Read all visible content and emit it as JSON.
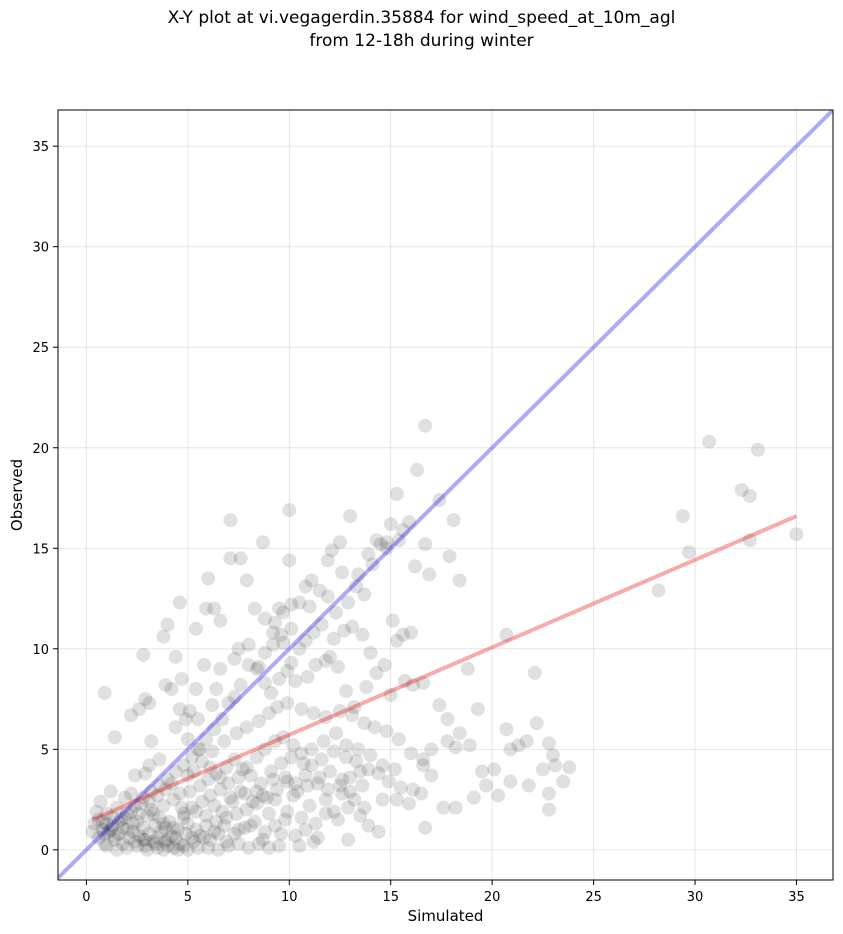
{
  "chart_data": {
    "type": "scatter",
    "title_line1": "X-Y plot at vi.vegagerdin.35884 for wind_speed_at_10m_agl",
    "title_line2": "from 12-18h during winter",
    "xlabel": "Simulated",
    "ylabel": "Observed",
    "xlim": [
      -1.4,
      36.8
    ],
    "ylim": [
      -1.5,
      36.8
    ],
    "xticks": [
      0,
      5,
      10,
      15,
      20,
      25,
      30,
      35
    ],
    "yticks": [
      0,
      5,
      10,
      15,
      20,
      25,
      30,
      35
    ],
    "grid": true,
    "colors": {
      "points": "#000000",
      "identity_line": "#0000ee",
      "fit_line": "#ee0000"
    },
    "identity_line": {
      "x": [
        -1.4,
        36.8
      ],
      "y": [
        -1.4,
        36.8
      ]
    },
    "fit_line": {
      "x": [
        0.3,
        35.0
      ],
      "y": [
        1.5,
        16.6
      ]
    },
    "points": [
      [
        0.9,
        7.8
      ],
      [
        1.4,
        5.6
      ],
      [
        2.2,
        6.7
      ],
      [
        2.6,
        7.0
      ],
      [
        2.9,
        7.5
      ],
      [
        3.8,
        10.6
      ],
      [
        4.0,
        11.2
      ],
      [
        4.6,
        12.3
      ],
      [
        5.4,
        11.0
      ],
      [
        5.9,
        12.0
      ],
      [
        6.0,
        13.5
      ],
      [
        6.3,
        12.0
      ],
      [
        6.6,
        11.4
      ],
      [
        7.1,
        14.5
      ],
      [
        7.1,
        16.4
      ],
      [
        7.6,
        14.5
      ],
      [
        7.9,
        13.4
      ],
      [
        8.7,
        15.3
      ],
      [
        10.0,
        16.9
      ],
      [
        10.0,
        14.4
      ],
      [
        10.1,
        12.2
      ],
      [
        10.8,
        13.1
      ],
      [
        11.1,
        13.4
      ],
      [
        11.9,
        14.4
      ],
      [
        12.1,
        14.9
      ],
      [
        12.5,
        15.3
      ],
      [
        13.0,
        16.6
      ],
      [
        13.9,
        14.7
      ],
      [
        14.3,
        15.4
      ],
      [
        14.8,
        15.0
      ],
      [
        15.0,
        16.2
      ],
      [
        15.3,
        17.7
      ],
      [
        15.6,
        15.9
      ],
      [
        15.9,
        16.3
      ],
      [
        16.2,
        14.1
      ],
      [
        16.7,
        21.1
      ],
      [
        16.3,
        18.9
      ],
      [
        16.7,
        15.2
      ],
      [
        17.4,
        17.4
      ],
      [
        17.9,
        14.6
      ],
      [
        18.1,
        16.4
      ],
      [
        18.4,
        13.4
      ],
      [
        16.9,
        13.7
      ],
      [
        28.2,
        12.9
      ],
      [
        29.4,
        16.6
      ],
      [
        29.7,
        14.8
      ],
      [
        30.7,
        20.3
      ],
      [
        32.3,
        17.9
      ],
      [
        32.7,
        17.6
      ],
      [
        32.7,
        15.4
      ],
      [
        33.1,
        19.9
      ],
      [
        35.0,
        15.7
      ],
      [
        20.7,
        10.7
      ],
      [
        22.1,
        8.8
      ],
      [
        18.8,
        9.0
      ],
      [
        19.3,
        7.0
      ],
      [
        17.8,
        6.5
      ],
      [
        18.2,
        5.1
      ],
      [
        18.9,
        5.2
      ],
      [
        19.5,
        3.9
      ],
      [
        20.1,
        4.0
      ],
      [
        20.7,
        6.0
      ],
      [
        20.9,
        5.0
      ],
      [
        21.3,
        5.2
      ],
      [
        21.7,
        5.4
      ],
      [
        21.8,
        3.2
      ],
      [
        22.2,
        6.3
      ],
      [
        22.5,
        4.0
      ],
      [
        22.8,
        5.3
      ],
      [
        23.0,
        4.7
      ],
      [
        23.1,
        4.2
      ],
      [
        23.8,
        4.1
      ],
      [
        23.5,
        3.4
      ],
      [
        22.8,
        2.8
      ],
      [
        22.8,
        2.0
      ],
      [
        20.9,
        3.4
      ],
      [
        20.3,
        2.7
      ],
      [
        19.7,
        3.2
      ],
      [
        19.1,
        2.6
      ],
      [
        18.2,
        2.1
      ],
      [
        17.6,
        2.1
      ],
      [
        16.7,
        1.1
      ],
      [
        16.5,
        2.8
      ],
      [
        17.0,
        3.7
      ],
      [
        16.6,
        4.2
      ],
      [
        15.9,
        2.3
      ],
      [
        15.3,
        2.5
      ],
      [
        14.6,
        2.5
      ],
      [
        17.4,
        7.2
      ],
      [
        16.6,
        8.3
      ],
      [
        16.1,
        8.2
      ],
      [
        15.7,
        8.4
      ],
      [
        15.6,
        10.7
      ],
      [
        16.0,
        10.8
      ],
      [
        15.3,
        10.4
      ],
      [
        15.1,
        11.4
      ],
      [
        14.7,
        9.2
      ],
      [
        14.3,
        8.8
      ],
      [
        15.0,
        7.7
      ],
      [
        13.8,
        8.1
      ],
      [
        13.2,
        7.1
      ],
      [
        12.8,
        7.9
      ],
      [
        12.4,
        9.1
      ],
      [
        12.0,
        9.6
      ],
      [
        11.6,
        11.2
      ],
      [
        11.2,
        10.8
      ],
      [
        10.8,
        10.4
      ],
      [
        10.5,
        10.0
      ],
      [
        10.1,
        9.3
      ],
      [
        9.7,
        11.8
      ],
      [
        9.5,
        12.0
      ],
      [
        9.3,
        11.3
      ],
      [
        9.6,
        10.7
      ],
      [
        9.2,
        10.2
      ],
      [
        8.8,
        9.8
      ],
      [
        8.5,
        9.1
      ],
      [
        8.0,
        9.2
      ],
      [
        7.6,
        8.2
      ],
      [
        7.3,
        7.6
      ],
      [
        7.0,
        7.3
      ],
      [
        6.7,
        6.5
      ],
      [
        6.3,
        6.0
      ],
      [
        5.9,
        5.5
      ],
      [
        5.6,
        5.0
      ],
      [
        5.2,
        4.6
      ],
      [
        4.8,
        4.2
      ],
      [
        4.4,
        3.9
      ],
      [
        4.0,
        3.5
      ],
      [
        3.6,
        3.2
      ],
      [
        3.2,
        2.9
      ],
      [
        2.8,
        2.6
      ],
      [
        2.4,
        2.2
      ],
      [
        2.0,
        1.8
      ],
      [
        1.6,
        1.4
      ],
      [
        1.2,
        1.0
      ],
      [
        0.9,
        0.8
      ],
      [
        4.6,
        7.0
      ],
      [
        5.1,
        6.9
      ],
      [
        4.2,
        8.0
      ],
      [
        4.4,
        9.6
      ],
      [
        3.9,
        8.2
      ],
      [
        4.7,
        8.5
      ],
      [
        5.4,
        8.0
      ],
      [
        5.8,
        9.2
      ],
      [
        6.4,
        8.0
      ],
      [
        6.2,
        7.2
      ],
      [
        5.5,
        6.5
      ],
      [
        4.9,
        6.5
      ],
      [
        4.4,
        6.1
      ],
      [
        3.2,
        5.4
      ],
      [
        3.6,
        4.5
      ],
      [
        3.1,
        4.2
      ],
      [
        2.9,
        3.8
      ],
      [
        2.4,
        3.7
      ],
      [
        2.8,
        9.7
      ],
      [
        3.1,
        7.3
      ],
      [
        6.6,
        9.0
      ],
      [
        7.3,
        9.5
      ],
      [
        7.5,
        10.0
      ],
      [
        8.0,
        10.2
      ],
      [
        8.4,
        9.0
      ],
      [
        8.8,
        8.3
      ],
      [
        9.1,
        7.8
      ],
      [
        9.5,
        8.5
      ],
      [
        9.9,
        8.9
      ],
      [
        10.3,
        8.4
      ],
      [
        10.9,
        8.6
      ],
      [
        11.3,
        9.2
      ],
      [
        11.8,
        9.4
      ],
      [
        12.2,
        10.5
      ],
      [
        12.7,
        10.9
      ],
      [
        13.1,
        11.1
      ],
      [
        13.6,
        10.7
      ],
      [
        14.0,
        9.8
      ],
      [
        13.7,
        12.7
      ],
      [
        13.3,
        13.1
      ],
      [
        12.9,
        12.3
      ],
      [
        12.3,
        11.8
      ],
      [
        11.9,
        12.6
      ],
      [
        11.5,
        12.9
      ],
      [
        11.0,
        12.1
      ],
      [
        10.5,
        12.3
      ],
      [
        10.1,
        11.0
      ],
      [
        9.7,
        10.3
      ],
      [
        9.2,
        10.8
      ],
      [
        8.8,
        11.5
      ],
      [
        8.3,
        12.0
      ],
      [
        12.6,
        13.8
      ],
      [
        13.4,
        13.7
      ],
      [
        14.1,
        14.2
      ],
      [
        14.8,
        15.3
      ],
      [
        15.4,
        15.4
      ],
      [
        14.5,
        15.2
      ],
      [
        5.0,
        5.5
      ],
      [
        5.5,
        5.0
      ],
      [
        6.2,
        4.9
      ],
      [
        6.8,
        5.4
      ],
      [
        7.4,
        5.8
      ],
      [
        7.9,
        6.1
      ],
      [
        8.5,
        6.4
      ],
      [
        9.0,
        6.8
      ],
      [
        9.4,
        7.1
      ],
      [
        9.9,
        7.3
      ],
      [
        10.6,
        7.0
      ],
      [
        11.2,
        6.8
      ],
      [
        11.8,
        6.6
      ],
      [
        12.5,
        6.9
      ],
      [
        13.1,
        6.7
      ],
      [
        13.7,
        6.3
      ],
      [
        14.2,
        6.1
      ],
      [
        14.8,
        5.9
      ],
      [
        15.4,
        5.5
      ],
      [
        16.0,
        4.8
      ],
      [
        16.6,
        4.5
      ],
      [
        17.0,
        5.0
      ],
      [
        17.8,
        5.4
      ],
      [
        18.4,
        5.8
      ],
      [
        12.8,
        5.2
      ],
      [
        12.2,
        4.9
      ],
      [
        11.6,
        4.5
      ],
      [
        11.1,
        4.2
      ],
      [
        10.6,
        4.8
      ],
      [
        10.2,
        5.2
      ],
      [
        9.7,
        5.6
      ],
      [
        9.3,
        5.4
      ],
      [
        8.8,
        5.0
      ],
      [
        8.4,
        4.6
      ],
      [
        7.9,
        4.1
      ],
      [
        7.5,
        3.6
      ],
      [
        7.0,
        3.3
      ],
      [
        6.6,
        3.0
      ],
      [
        6.1,
        2.7
      ],
      [
        5.7,
        2.4
      ],
      [
        5.2,
        2.1
      ],
      [
        4.8,
        1.8
      ],
      [
        13.3,
        4.4
      ],
      [
        13.9,
        4.0
      ],
      [
        14.4,
        3.8
      ],
      [
        14.9,
        3.4
      ],
      [
        15.5,
        3.1
      ],
      [
        16.1,
        3.0
      ],
      [
        13.6,
        3.2
      ],
      [
        13.0,
        2.9
      ],
      [
        12.6,
        3.5
      ],
      [
        12.0,
        3.9
      ],
      [
        11.5,
        3.6
      ],
      [
        10.9,
        3.2
      ],
      [
        10.4,
        2.9
      ],
      [
        9.9,
        3.4
      ],
      [
        9.4,
        3.0
      ],
      [
        8.9,
        2.6
      ],
      [
        8.4,
        2.3
      ],
      [
        7.9,
        2.0
      ],
      [
        7.4,
        1.8
      ],
      [
        6.9,
        1.6
      ],
      [
        6.4,
        1.4
      ],
      [
        5.9,
        1.2
      ],
      [
        5.4,
        1.0
      ],
      [
        4.9,
        0.8
      ],
      [
        4.4,
        0.6
      ],
      [
        3.9,
        0.4
      ],
      [
        3.4,
        0.3
      ],
      [
        2.9,
        0.2
      ],
      [
        13.5,
        1.7
      ],
      [
        12.9,
        2.1
      ],
      [
        12.4,
        1.5
      ],
      [
        11.8,
        1.8
      ],
      [
        11.3,
        1.3
      ],
      [
        10.8,
        1.0
      ],
      [
        10.3,
        0.7
      ],
      [
        9.8,
        1.5
      ],
      [
        9.3,
        1.2
      ],
      [
        8.8,
        0.9
      ],
      [
        8.3,
        1.4
      ],
      [
        7.8,
        1.1
      ],
      [
        7.3,
        0.8
      ],
      [
        6.8,
        1.2
      ],
      [
        6.3,
        0.9
      ],
      [
        5.8,
        0.6
      ],
      [
        5.3,
        0.4
      ],
      [
        4.8,
        0.2
      ],
      [
        4.3,
        0.1
      ],
      [
        3.8,
        0.0
      ],
      [
        12.9,
        0.5
      ],
      [
        11.2,
        0.4
      ],
      [
        10.5,
        0.2
      ],
      [
        9.0,
        0.1
      ],
      [
        7.5,
        0.3
      ],
      [
        6.0,
        0.1
      ],
      [
        5.0,
        0.0
      ],
      [
        13.9,
        1.2
      ],
      [
        14.4,
        0.9
      ],
      [
        0.4,
        1.3
      ],
      [
        0.5,
        1.9
      ],
      [
        0.6,
        0.6
      ],
      [
        0.7,
        2.4
      ],
      [
        0.8,
        1.4
      ],
      [
        0.9,
        0.3
      ],
      [
        1.0,
        1.8
      ],
      [
        1.1,
        0.9
      ],
      [
        1.2,
        2.9
      ],
      [
        1.3,
        1.2
      ],
      [
        1.4,
        0.5
      ],
      [
        1.5,
        2.1
      ],
      [
        1.6,
        0.8
      ],
      [
        1.7,
        1.5
      ],
      [
        1.8,
        0.3
      ],
      [
        1.9,
        2.6
      ],
      [
        2.0,
        1.0
      ],
      [
        2.1,
        0.6
      ],
      [
        2.2,
        1.9
      ],
      [
        2.3,
        0.9
      ],
      [
        2.4,
        0.4
      ],
      [
        2.5,
        1.4
      ],
      [
        2.6,
        0.7
      ],
      [
        2.7,
        2.3
      ],
      [
        2.8,
        1.1
      ],
      [
        2.9,
        0.5
      ],
      [
        3.0,
        1.7
      ],
      [
        3.1,
        0.8
      ],
      [
        3.2,
        2.0
      ],
      [
        3.3,
        0.4
      ],
      [
        3.4,
        1.2
      ],
      [
        3.5,
        0.6
      ],
      [
        3.6,
        1.6
      ],
      [
        3.7,
        0.9
      ],
      [
        3.8,
        2.2
      ],
      [
        3.9,
        1.1
      ],
      [
        4.0,
        0.5
      ],
      [
        4.1,
        1.4
      ],
      [
        4.2,
        0.7
      ],
      [
        4.3,
        2.5
      ],
      [
        4.5,
        1.0
      ],
      [
        4.6,
        0.3
      ],
      [
        4.8,
        1.6
      ],
      [
        5.0,
        1.3
      ],
      [
        5.2,
        0.6
      ],
      [
        5.4,
        1.9
      ],
      [
        5.6,
        0.7
      ],
      [
        5.9,
        1.7
      ],
      [
        6.1,
        0.5
      ],
      [
        6.3,
        2.2
      ],
      [
        6.5,
        0.8
      ],
      [
        6.7,
        1.9
      ],
      [
        6.9,
        0.4
      ],
      [
        7.2,
        2.4
      ],
      [
        7.5,
        1.0
      ],
      [
        7.8,
        2.8
      ],
      [
        8.1,
        1.2
      ],
      [
        8.4,
        2.9
      ],
      [
        8.7,
        0.5
      ],
      [
        9.0,
        1.8
      ],
      [
        9.3,
        2.5
      ],
      [
        9.6,
        0.8
      ],
      [
        9.9,
        1.9
      ],
      [
        10.2,
        2.7
      ],
      [
        10.6,
        1.6
      ],
      [
        11.0,
        2.2
      ],
      [
        11.4,
        0.6
      ],
      [
        11.8,
        2.5
      ],
      [
        12.2,
        1.9
      ],
      [
        12.6,
        2.8
      ],
      [
        13.2,
        2.5
      ],
      [
        13.7,
        2.1
      ],
      [
        1.0,
        0.2
      ],
      [
        1.5,
        0.0
      ],
      [
        2.0,
        0.1
      ],
      [
        2.5,
        0.2
      ],
      [
        3.0,
        0.0
      ],
      [
        3.5,
        0.1
      ],
      [
        4.0,
        0.2
      ],
      [
        4.5,
        0.0
      ],
      [
        5.5,
        0.1
      ],
      [
        6.5,
        0.0
      ],
      [
        7.0,
        0.2
      ],
      [
        8.0,
        0.1
      ],
      [
        8.5,
        0.3
      ],
      [
        9.5,
        0.2
      ],
      [
        0.8,
        1.0
      ],
      [
        1.3,
        1.6
      ],
      [
        1.8,
        1.1
      ],
      [
        2.3,
        1.3
      ],
      [
        2.8,
        0.5
      ],
      [
        3.3,
        1.8
      ],
      [
        3.8,
        1.3
      ],
      [
        4.3,
        1.1
      ],
      [
        4.7,
        2.1
      ],
      [
        5.1,
        2.9
      ],
      [
        5.6,
        3.2
      ],
      [
        6.0,
        3.5
      ],
      [
        6.4,
        3.8
      ],
      [
        6.9,
        4.1
      ],
      [
        7.3,
        4.5
      ],
      [
        7.7,
        4.0
      ],
      [
        8.1,
        3.7
      ],
      [
        8.6,
        3.3
      ],
      [
        9.1,
        3.9
      ],
      [
        9.6,
        4.3
      ],
      [
        10.1,
        4.6
      ],
      [
        10.7,
        4.3
      ],
      [
        11.1,
        5.0
      ],
      [
        11.7,
        5.4
      ],
      [
        12.3,
        5.8
      ],
      [
        12.8,
        4.6
      ],
      [
        13.4,
        5.0
      ],
      [
        14.0,
        4.7
      ],
      [
        14.6,
        4.2
      ],
      [
        15.2,
        4.0
      ],
      [
        0.3,
        0.9
      ],
      [
        0.6,
        1.5
      ],
      [
        1.0,
        1.3
      ],
      [
        1.4,
        0.7
      ],
      [
        1.9,
        1.6
      ],
      [
        2.2,
        2.8
      ],
      [
        2.6,
        1.8
      ],
      [
        3.1,
        2.4
      ],
      [
        3.5,
        2.7
      ],
      [
        3.9,
        3.0
      ],
      [
        4.2,
        3.3
      ],
      [
        4.6,
        2.8
      ],
      [
        5.0,
        3.7
      ],
      [
        5.3,
        3.9
      ],
      [
        5.7,
        4.4
      ],
      [
        6.1,
        4.1
      ],
      [
        6.6,
        3.6
      ],
      [
        7.1,
        2.6
      ],
      [
        7.6,
        2.9
      ],
      [
        8.2,
        2.4
      ],
      [
        8.7,
        2.7
      ],
      [
        9.2,
        3.5
      ],
      [
        9.8,
        3.6
      ],
      [
        10.3,
        3.3
      ],
      [
        10.8,
        3.7
      ],
      [
        11.4,
        3.3
      ],
      [
        11.9,
        3.0
      ],
      [
        12.5,
        3.2
      ],
      [
        13.0,
        3.6
      ],
      [
        13.5,
        3.9
      ]
    ]
  }
}
